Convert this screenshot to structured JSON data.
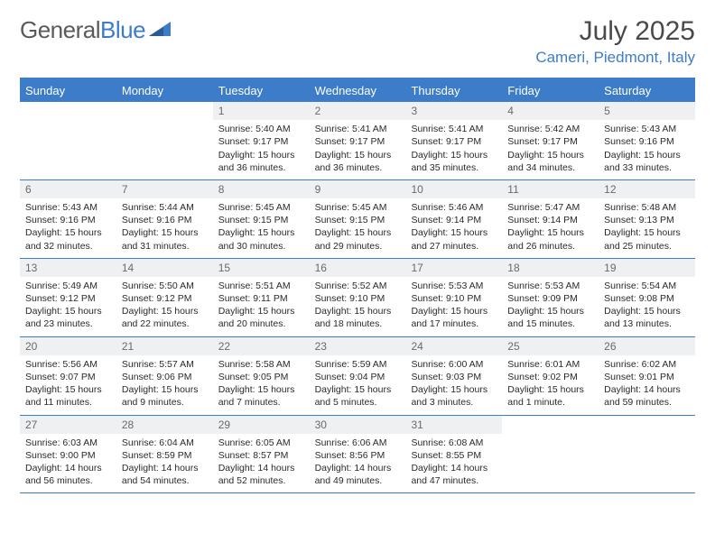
{
  "logo": {
    "text1": "General",
    "text2": "Blue"
  },
  "title": "July 2025",
  "location": "Cameri, Piedmont, Italy",
  "colors": {
    "accent": "#3d7cc9",
    "daynum_bg": "#eef0f2",
    "text": "#333333"
  },
  "day_headers": [
    "Sunday",
    "Monday",
    "Tuesday",
    "Wednesday",
    "Thursday",
    "Friday",
    "Saturday"
  ],
  "weeks": [
    [
      null,
      null,
      {
        "n": "1",
        "sr": "Sunrise: 5:40 AM",
        "ss": "Sunset: 9:17 PM",
        "dl1": "Daylight: 15 hours",
        "dl2": "and 36 minutes."
      },
      {
        "n": "2",
        "sr": "Sunrise: 5:41 AM",
        "ss": "Sunset: 9:17 PM",
        "dl1": "Daylight: 15 hours",
        "dl2": "and 36 minutes."
      },
      {
        "n": "3",
        "sr": "Sunrise: 5:41 AM",
        "ss": "Sunset: 9:17 PM",
        "dl1": "Daylight: 15 hours",
        "dl2": "and 35 minutes."
      },
      {
        "n": "4",
        "sr": "Sunrise: 5:42 AM",
        "ss": "Sunset: 9:17 PM",
        "dl1": "Daylight: 15 hours",
        "dl2": "and 34 minutes."
      },
      {
        "n": "5",
        "sr": "Sunrise: 5:43 AM",
        "ss": "Sunset: 9:16 PM",
        "dl1": "Daylight: 15 hours",
        "dl2": "and 33 minutes."
      }
    ],
    [
      {
        "n": "6",
        "sr": "Sunrise: 5:43 AM",
        "ss": "Sunset: 9:16 PM",
        "dl1": "Daylight: 15 hours",
        "dl2": "and 32 minutes."
      },
      {
        "n": "7",
        "sr": "Sunrise: 5:44 AM",
        "ss": "Sunset: 9:16 PM",
        "dl1": "Daylight: 15 hours",
        "dl2": "and 31 minutes."
      },
      {
        "n": "8",
        "sr": "Sunrise: 5:45 AM",
        "ss": "Sunset: 9:15 PM",
        "dl1": "Daylight: 15 hours",
        "dl2": "and 30 minutes."
      },
      {
        "n": "9",
        "sr": "Sunrise: 5:45 AM",
        "ss": "Sunset: 9:15 PM",
        "dl1": "Daylight: 15 hours",
        "dl2": "and 29 minutes."
      },
      {
        "n": "10",
        "sr": "Sunrise: 5:46 AM",
        "ss": "Sunset: 9:14 PM",
        "dl1": "Daylight: 15 hours",
        "dl2": "and 27 minutes."
      },
      {
        "n": "11",
        "sr": "Sunrise: 5:47 AM",
        "ss": "Sunset: 9:14 PM",
        "dl1": "Daylight: 15 hours",
        "dl2": "and 26 minutes."
      },
      {
        "n": "12",
        "sr": "Sunrise: 5:48 AM",
        "ss": "Sunset: 9:13 PM",
        "dl1": "Daylight: 15 hours",
        "dl2": "and 25 minutes."
      }
    ],
    [
      {
        "n": "13",
        "sr": "Sunrise: 5:49 AM",
        "ss": "Sunset: 9:12 PM",
        "dl1": "Daylight: 15 hours",
        "dl2": "and 23 minutes."
      },
      {
        "n": "14",
        "sr": "Sunrise: 5:50 AM",
        "ss": "Sunset: 9:12 PM",
        "dl1": "Daylight: 15 hours",
        "dl2": "and 22 minutes."
      },
      {
        "n": "15",
        "sr": "Sunrise: 5:51 AM",
        "ss": "Sunset: 9:11 PM",
        "dl1": "Daylight: 15 hours",
        "dl2": "and 20 minutes."
      },
      {
        "n": "16",
        "sr": "Sunrise: 5:52 AM",
        "ss": "Sunset: 9:10 PM",
        "dl1": "Daylight: 15 hours",
        "dl2": "and 18 minutes."
      },
      {
        "n": "17",
        "sr": "Sunrise: 5:53 AM",
        "ss": "Sunset: 9:10 PM",
        "dl1": "Daylight: 15 hours",
        "dl2": "and 17 minutes."
      },
      {
        "n": "18",
        "sr": "Sunrise: 5:53 AM",
        "ss": "Sunset: 9:09 PM",
        "dl1": "Daylight: 15 hours",
        "dl2": "and 15 minutes."
      },
      {
        "n": "19",
        "sr": "Sunrise: 5:54 AM",
        "ss": "Sunset: 9:08 PM",
        "dl1": "Daylight: 15 hours",
        "dl2": "and 13 minutes."
      }
    ],
    [
      {
        "n": "20",
        "sr": "Sunrise: 5:56 AM",
        "ss": "Sunset: 9:07 PM",
        "dl1": "Daylight: 15 hours",
        "dl2": "and 11 minutes."
      },
      {
        "n": "21",
        "sr": "Sunrise: 5:57 AM",
        "ss": "Sunset: 9:06 PM",
        "dl1": "Daylight: 15 hours",
        "dl2": "and 9 minutes."
      },
      {
        "n": "22",
        "sr": "Sunrise: 5:58 AM",
        "ss": "Sunset: 9:05 PM",
        "dl1": "Daylight: 15 hours",
        "dl2": "and 7 minutes."
      },
      {
        "n": "23",
        "sr": "Sunrise: 5:59 AM",
        "ss": "Sunset: 9:04 PM",
        "dl1": "Daylight: 15 hours",
        "dl2": "and 5 minutes."
      },
      {
        "n": "24",
        "sr": "Sunrise: 6:00 AM",
        "ss": "Sunset: 9:03 PM",
        "dl1": "Daylight: 15 hours",
        "dl2": "and 3 minutes."
      },
      {
        "n": "25",
        "sr": "Sunrise: 6:01 AM",
        "ss": "Sunset: 9:02 PM",
        "dl1": "Daylight: 15 hours",
        "dl2": "and 1 minute."
      },
      {
        "n": "26",
        "sr": "Sunrise: 6:02 AM",
        "ss": "Sunset: 9:01 PM",
        "dl1": "Daylight: 14 hours",
        "dl2": "and 59 minutes."
      }
    ],
    [
      {
        "n": "27",
        "sr": "Sunrise: 6:03 AM",
        "ss": "Sunset: 9:00 PM",
        "dl1": "Daylight: 14 hours",
        "dl2": "and 56 minutes."
      },
      {
        "n": "28",
        "sr": "Sunrise: 6:04 AM",
        "ss": "Sunset: 8:59 PM",
        "dl1": "Daylight: 14 hours",
        "dl2": "and 54 minutes."
      },
      {
        "n": "29",
        "sr": "Sunrise: 6:05 AM",
        "ss": "Sunset: 8:57 PM",
        "dl1": "Daylight: 14 hours",
        "dl2": "and 52 minutes."
      },
      {
        "n": "30",
        "sr": "Sunrise: 6:06 AM",
        "ss": "Sunset: 8:56 PM",
        "dl1": "Daylight: 14 hours",
        "dl2": "and 49 minutes."
      },
      {
        "n": "31",
        "sr": "Sunrise: 6:08 AM",
        "ss": "Sunset: 8:55 PM",
        "dl1": "Daylight: 14 hours",
        "dl2": "and 47 minutes."
      },
      null,
      null
    ]
  ]
}
